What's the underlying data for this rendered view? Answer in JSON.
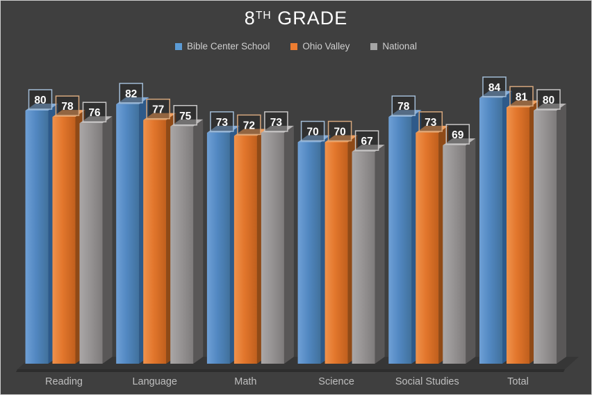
{
  "title": {
    "prefix": "8",
    "superscript": "TH",
    "rest": " GRADE",
    "full": "8TH GRADE"
  },
  "legend": [
    {
      "label": "Bible Center School",
      "color": "#5B9BD5"
    },
    {
      "label": "Ohio Valley",
      "color": "#ED7D31"
    },
    {
      "label": "National",
      "color": "#A5A5A5"
    }
  ],
  "chart_data": {
    "type": "bar",
    "subtype": "3d-column",
    "title": "8TH GRADE",
    "categories": [
      "Reading",
      "Language",
      "Math",
      "Science",
      "Social Studies",
      "Total"
    ],
    "series": [
      {
        "name": "Bible Center School",
        "color": "#5B9BD5",
        "values": [
          80,
          82,
          73,
          70,
          78,
          84
        ]
      },
      {
        "name": "Ohio Valley",
        "color": "#ED7D31",
        "values": [
          78,
          77,
          72,
          70,
          73,
          81
        ]
      },
      {
        "name": "National",
        "color": "#A5A5A5",
        "values": [
          76,
          75,
          73,
          67,
          69,
          80
        ]
      }
    ],
    "ylim": [
      0,
      90
    ],
    "xlabel": "",
    "ylabel": "",
    "grid": false,
    "data_labels": true,
    "legend_position": "top",
    "background_color": "#3F3F3F",
    "category_label_color": "#bfbfbf",
    "data_label_text_color": "#ffffff"
  }
}
